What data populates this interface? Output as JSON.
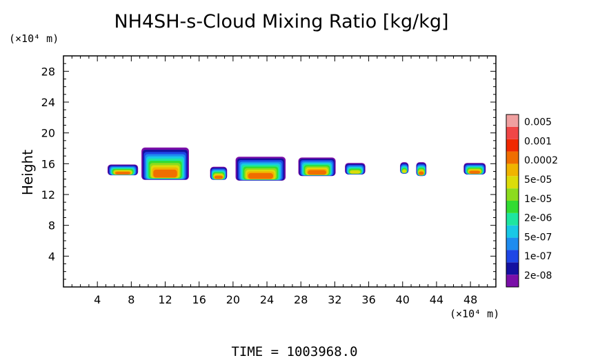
{
  "chart_data": {
    "type": "heatmap",
    "title": "NH4SH-s-Cloud Mixing Ratio [kg/kg]",
    "ylabel": "Height",
    "x_unit": "(×10⁴ m)",
    "y_unit": "(×10⁴ m)",
    "xlim": [
      0,
      51
    ],
    "ylim": [
      0,
      30
    ],
    "x_ticks": [
      "4",
      "8",
      "12",
      "16",
      "20",
      "24",
      "28",
      "32",
      "36",
      "40",
      "44",
      "48"
    ],
    "y_ticks": [
      "4",
      "8",
      "12",
      "16",
      "20",
      "24",
      "28"
    ],
    "colorbar": {
      "levels": [
        "2e-08",
        "1e-07",
        "5e-07",
        "2e-06",
        "1e-05",
        "5e-05",
        "0.0002",
        "0.001",
        "0.005"
      ],
      "colors": [
        "#7a0fa8",
        "#1410a0",
        "#1e46e6",
        "#1e8cf0",
        "#19c8e6",
        "#1ee6a0",
        "#32dc32",
        "#8cdc1e",
        "#dcdc0a",
        "#f0b400",
        "#f06e00",
        "#f02800",
        "#f04646",
        "#f0a0a0"
      ]
    },
    "cloud_clusters": [
      {
        "x_range": [
          5.2,
          8.8
        ],
        "z_range": [
          14.5,
          15.9
        ],
        "max_level": "5e-05"
      },
      {
        "x_range": [
          9.2,
          14.8
        ],
        "z_range": [
          13.9,
          18.1
        ],
        "max_level": "0.0002"
      },
      {
        "x_range": [
          17.3,
          19.3
        ],
        "z_range": [
          13.9,
          15.6
        ],
        "max_level": "5e-05"
      },
      {
        "x_range": [
          20.3,
          26.2
        ],
        "z_range": [
          13.8,
          16.9
        ],
        "max_level": "5e-05"
      },
      {
        "x_range": [
          27.7,
          32.1
        ],
        "z_range": [
          14.4,
          16.8
        ],
        "max_level": "5e-05"
      },
      {
        "x_range": [
          33.2,
          35.6
        ],
        "z_range": [
          14.6,
          16.1
        ],
        "max_level": "1e-05"
      },
      {
        "x_range": [
          39.7,
          40.7
        ],
        "z_range": [
          14.7,
          16.2
        ],
        "max_level": "1e-05"
      },
      {
        "x_range": [
          41.6,
          42.8
        ],
        "z_range": [
          14.4,
          16.2
        ],
        "max_level": "5e-05"
      },
      {
        "x_range": [
          47.2,
          49.8
        ],
        "z_range": [
          14.6,
          16.1
        ],
        "max_level": "5e-05"
      }
    ],
    "grid": false,
    "legend": "colorbar-right"
  },
  "footer": {
    "time_label": "TIME  =  1003968.0"
  }
}
